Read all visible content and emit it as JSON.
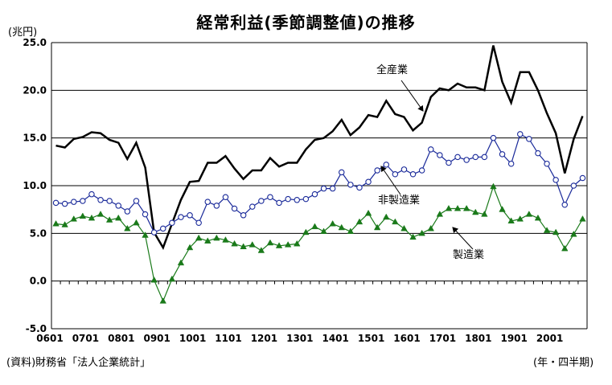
{
  "chart_data": {
    "type": "line",
    "title": "経常利益(季節調整値)の推移",
    "ylabel": "(兆円)",
    "xlabel": "(年・四半期)",
    "source": "(資料)財務省「法人企業統計」",
    "ylim": [
      -5.0,
      25.0
    ],
    "yticks": [
      "25.0",
      "20.0",
      "15.0",
      "10.0",
      "5.0",
      "0.0",
      "-5.0"
    ],
    "xtick_labels": [
      "0601",
      "0701",
      "0801",
      "0901",
      "1001",
      "1101",
      "1201",
      "1301",
      "1401",
      "1501",
      "1601",
      "1701",
      "1801",
      "1901",
      "2001"
    ],
    "grid": true,
    "x": [
      "0601",
      "0602",
      "0603",
      "0604",
      "0701",
      "0702",
      "0703",
      "0704",
      "0801",
      "0802",
      "0803",
      "0804",
      "0901",
      "0902",
      "0903",
      "0904",
      "1001",
      "1002",
      "1003",
      "1004",
      "1101",
      "1102",
      "1103",
      "1104",
      "1201",
      "1202",
      "1203",
      "1204",
      "1301",
      "1302",
      "1303",
      "1304",
      "1401",
      "1402",
      "1403",
      "1404",
      "1501",
      "1502",
      "1503",
      "1504",
      "1601",
      "1602",
      "1603",
      "1604",
      "1701",
      "1702",
      "1703",
      "1704",
      "1801",
      "1802",
      "1803",
      "1804",
      "1901",
      "1902",
      "1903",
      "1904",
      "2001",
      "2002",
      "2003",
      "2004"
    ],
    "series": [
      {
        "name": "全産業",
        "color": "#000000",
        "marker": "none",
        "values": [
          14.2,
          14.0,
          14.9,
          15.1,
          15.6,
          15.5,
          14.8,
          14.5,
          12.8,
          14.5,
          11.9,
          5.1,
          3.5,
          6.0,
          8.5,
          10.4,
          10.5,
          12.4,
          12.4,
          13.1,
          11.8,
          10.7,
          11.6,
          11.6,
          12.9,
          12.0,
          12.4,
          12.4,
          13.8,
          14.8,
          15.0,
          15.7,
          16.9,
          15.3,
          16.1,
          17.4,
          17.2,
          18.9,
          17.5,
          17.2,
          15.8,
          16.6,
          19.3,
          20.2,
          20.0,
          20.7,
          20.3,
          20.3,
          20.0,
          24.7,
          20.9,
          18.7,
          21.9,
          21.9,
          20.0,
          17.6,
          15.5,
          11.3,
          14.9,
          17.3
        ]
      },
      {
        "name": "非製造業",
        "color": "#1a2a9a",
        "marker": "circle",
        "values": [
          8.2,
          8.1,
          8.3,
          8.4,
          9.1,
          8.5,
          8.4,
          7.9,
          7.3,
          8.4,
          7.0,
          5.1,
          5.5,
          6.1,
          6.7,
          6.9,
          6.1,
          8.3,
          7.9,
          8.8,
          7.6,
          6.9,
          7.8,
          8.4,
          8.8,
          8.2,
          8.6,
          8.5,
          8.6,
          9.1,
          9.7,
          9.7,
          11.4,
          10.1,
          9.8,
          10.4,
          11.6,
          12.2,
          11.2,
          11.7,
          11.2,
          11.6,
          13.8,
          13.2,
          12.4,
          13.0,
          12.7,
          13.0,
          13.0,
          15.0,
          13.3,
          12.3,
          15.4,
          14.9,
          13.4,
          12.3,
          10.6,
          8.0,
          10.0,
          10.8
        ]
      },
      {
        "name": "製造業",
        "color": "#1a7a1a",
        "marker": "triangle",
        "values": [
          6.0,
          5.9,
          6.5,
          6.8,
          6.6,
          7.0,
          6.4,
          6.6,
          5.5,
          6.1,
          4.8,
          0.1,
          -2.1,
          0.2,
          1.9,
          3.5,
          4.5,
          4.2,
          4.5,
          4.3,
          3.9,
          3.6,
          3.8,
          3.2,
          4.0,
          3.7,
          3.8,
          3.9,
          5.1,
          5.7,
          5.2,
          6.0,
          5.6,
          5.2,
          6.2,
          7.1,
          5.6,
          6.7,
          6.2,
          5.5,
          4.6,
          5.0,
          5.5,
          7.0,
          7.6,
          7.6,
          7.6,
          7.2,
          7.0,
          9.9,
          7.5,
          6.3,
          6.5,
          7.0,
          6.6,
          5.3,
          5.1,
          3.4,
          4.9,
          6.5
        ]
      }
    ],
    "annotations": [
      {
        "text": "全産業",
        "series": "全産業"
      },
      {
        "text": "非製造業",
        "series": "非製造業"
      },
      {
        "text": "製造業",
        "series": "製造業"
      }
    ]
  }
}
